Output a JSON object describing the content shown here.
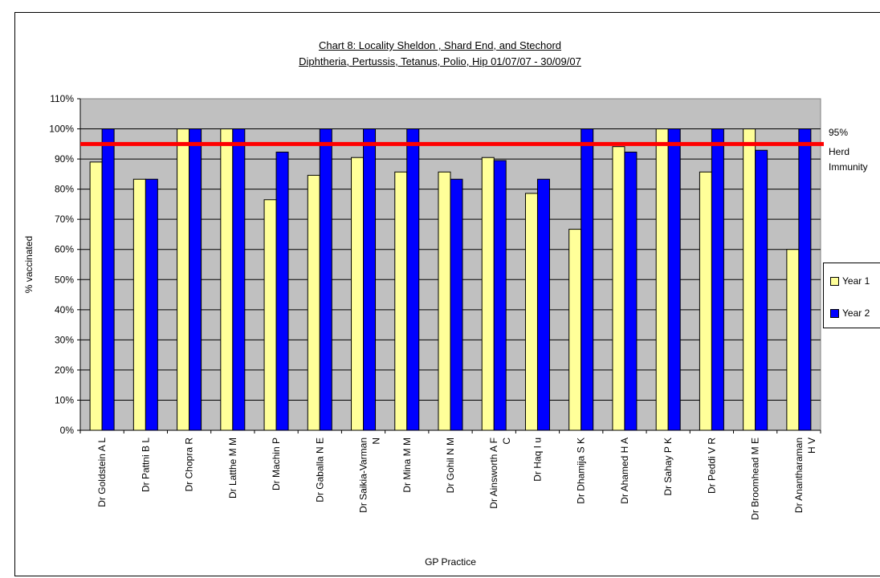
{
  "chart_data": {
    "type": "bar",
    "title": "Chart 8: Locality Sheldon , Shard End,  and Stechord",
    "subtitle": "Diphtheria, Pertussis, Tetanus, Polio, Hip 01/07/07 - 30/09/07",
    "xlabel": "GP Practice",
    "ylabel": "% vaccinated",
    "ylim": [
      0,
      110
    ],
    "yticks": [
      "0%",
      "10%",
      "20%",
      "30%",
      "40%",
      "50%",
      "60%",
      "70%",
      "80%",
      "90%",
      "100%",
      "110%"
    ],
    "categories": [
      [
        "Dr Goldstein A L"
      ],
      [
        "Dr Pattni B L"
      ],
      [
        "Dr Chopra R"
      ],
      [
        "Dr Latthe M M"
      ],
      [
        "Dr Machin P"
      ],
      [
        "Dr Gaballa N E"
      ],
      [
        "Dr Saikia-Varman",
        "N"
      ],
      [
        "Dr Mina M M"
      ],
      [
        "Dr Gohil N M"
      ],
      [
        "Dr Ainsworth  A F",
        "C"
      ],
      [
        "Dr  Haq I u"
      ],
      [
        "Dr Dhamija S K"
      ],
      [
        "Dr Ahamed H A"
      ],
      [
        "Dr Sahay  P K"
      ],
      [
        "Dr Peddi V R"
      ],
      [
        "Dr Broomhead M E"
      ],
      [
        "Dr Anantharaman",
        "H V"
      ]
    ],
    "series": [
      {
        "name": "Year 1",
        "color": "#ffff99",
        "values": [
          89,
          83.3,
          100,
          100,
          76.5,
          84.6,
          90.5,
          85.7,
          85.7,
          90.5,
          78.6,
          66.7,
          94.1,
          100,
          85.7,
          100,
          60
        ]
      },
      {
        "name": "Year 2",
        "color": "#0000ff",
        "values": [
          100,
          83.3,
          100,
          100,
          92.3,
          100,
          100,
          100,
          83.3,
          89.5,
          83.3,
          100,
          92.3,
          100,
          100,
          92.9,
          100
        ]
      }
    ],
    "reference_line": {
      "value": 95,
      "color": "#ff0000",
      "label_lines": [
        "95%",
        "Herd",
        "Immunity"
      ]
    },
    "plot_background": "#c0c0c0",
    "grid": true,
    "legend_position": "right"
  }
}
